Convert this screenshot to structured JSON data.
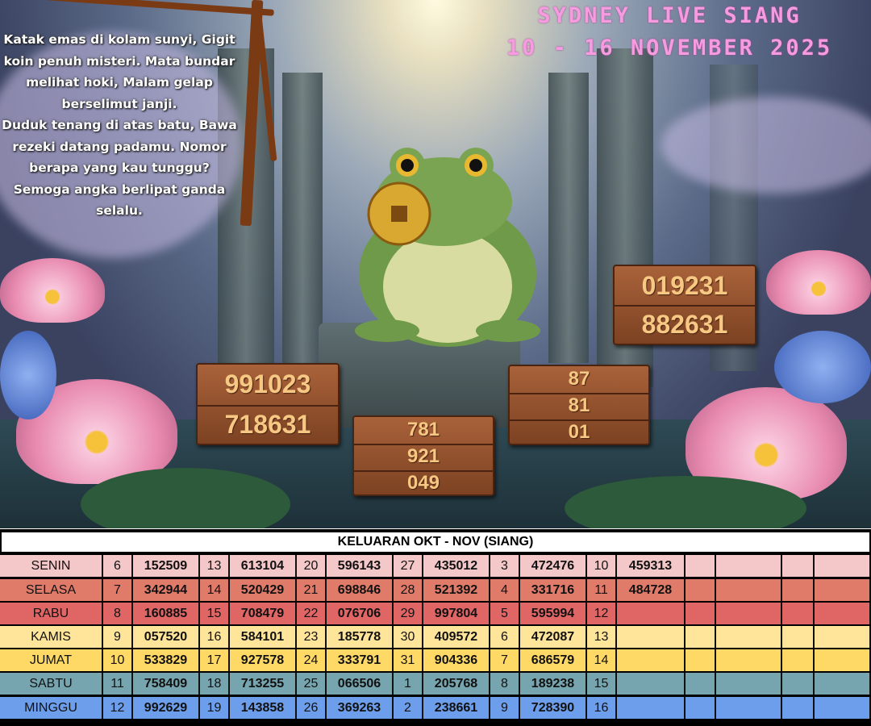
{
  "poster": {
    "title_line1": "SYDNEY LIVE SIANG",
    "title_line2": "10 - 16 NOVEMBER 2025",
    "poem": [
      "Katak emas di kolam sunyi, Gigit koin penuh misteri. Mata bundar melihat hoki, Malam gelap berselimut janji.",
      "Duduk tenang di atas batu, Bawa rezeki datang padamu. Nomor berapa yang kau tunggu? Semoga angka berlipat ganda selalu."
    ],
    "signs": {
      "left": [
        "991023",
        "718631"
      ],
      "right_top": [
        "019231",
        "882631"
      ],
      "center_bottom": [
        "781",
        "921",
        "049"
      ],
      "right_middle": [
        "87",
        "81",
        "01"
      ]
    },
    "colors": {
      "title": "#f79be0",
      "sign_text": "#f7c884",
      "wood": "#8a4a28"
    }
  },
  "table": {
    "title": "KELUARAN OKT - NOV (SIANG)",
    "rows": [
      {
        "day": "SENIN",
        "color": "#f4c7c9",
        "cells": [
          "6",
          "152509",
          "13",
          "613104",
          "20",
          "596143",
          "27",
          "435012",
          "3",
          "472476",
          "10",
          "459313",
          "",
          "",
          "",
          ""
        ]
      },
      {
        "day": "SELASA",
        "color": "#e07b6a",
        "cells": [
          "7",
          "342944",
          "14",
          "520429",
          "21",
          "698846",
          "28",
          "521392",
          "4",
          "331716",
          "11",
          "484728",
          "",
          "",
          "",
          ""
        ]
      },
      {
        "day": "RABU",
        "color": "#e06666",
        "cells": [
          "8",
          "160885",
          "15",
          "708479",
          "22",
          "076706",
          "29",
          "997804",
          "5",
          "595994",
          "12",
          "",
          "",
          "",
          "",
          ""
        ]
      },
      {
        "day": "KAMIS",
        "color": "#ffe599",
        "cells": [
          "9",
          "057520",
          "16",
          "584101",
          "23",
          "185778",
          "30",
          "409572",
          "6",
          "472087",
          "13",
          "",
          "",
          "",
          "",
          ""
        ]
      },
      {
        "day": "JUMAT",
        "color": "#ffd966",
        "cells": [
          "10",
          "533829",
          "17",
          "927578",
          "24",
          "333791",
          "31",
          "904336",
          "7",
          "686579",
          "14",
          "",
          "",
          "",
          "",
          ""
        ]
      },
      {
        "day": "SABTU",
        "color": "#76a5af",
        "cells": [
          "11",
          "758409",
          "18",
          "713255",
          "25",
          "066506",
          "1",
          "205768",
          "8",
          "189238",
          "15",
          "",
          "",
          "",
          "",
          ""
        ]
      },
      {
        "day": "MINGGU",
        "color": "#6d9eeb",
        "cells": [
          "12",
          "992629",
          "19",
          "143858",
          "26",
          "369263",
          "2",
          "238661",
          "9",
          "728390",
          "16",
          "",
          "",
          "",
          "",
          ""
        ]
      }
    ]
  }
}
